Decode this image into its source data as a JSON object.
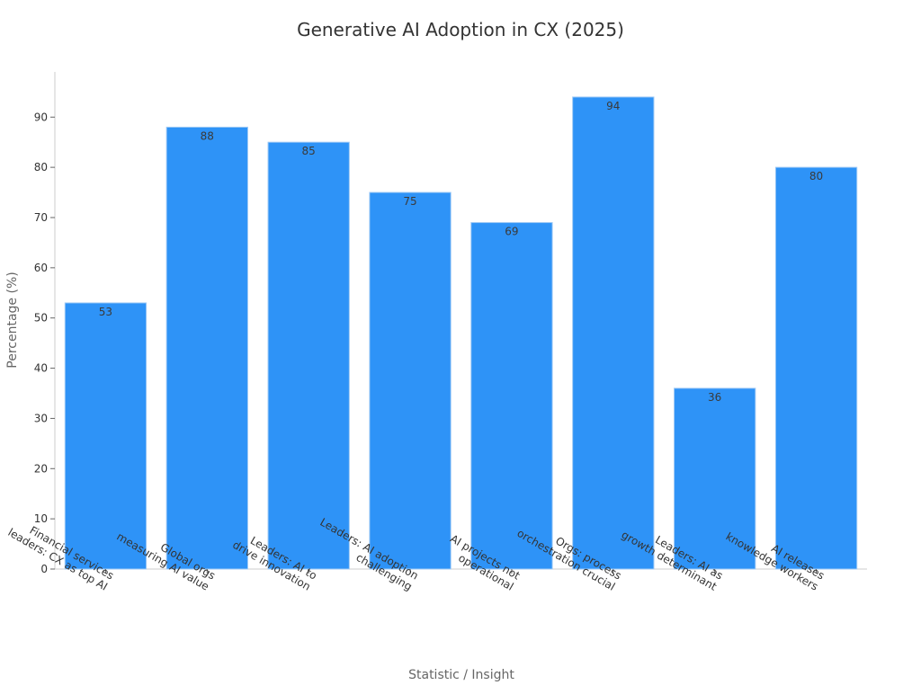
{
  "chart_data": {
    "type": "bar",
    "title": "Generative AI Adoption in CX (2025)",
    "xlabel": "Statistic / Insight",
    "ylabel": "Percentage (%)",
    "categories": [
      [
        "Financial services",
        "leaders: CX as top AI"
      ],
      [
        "Global orgs",
        "measuring AI value"
      ],
      [
        "Leaders: AI to",
        "drive innovation"
      ],
      [
        "Leaders: AI adoption",
        "challenging"
      ],
      [
        "AI projects not",
        "operational"
      ],
      [
        "Orgs: process",
        "orchestration crucial"
      ],
      [
        "Leaders: AI as",
        "growth determinant"
      ],
      [
        "AI releases",
        "knowledge workers"
      ]
    ],
    "values": [
      53,
      88,
      85,
      75,
      69,
      94,
      36,
      80
    ],
    "ylim": [
      0,
      99
    ],
    "yticks": [
      0,
      10,
      20,
      30,
      40,
      50,
      60,
      70,
      80,
      90
    ],
    "bar_color": "#2e93f7",
    "grid": false,
    "legend": "none"
  }
}
